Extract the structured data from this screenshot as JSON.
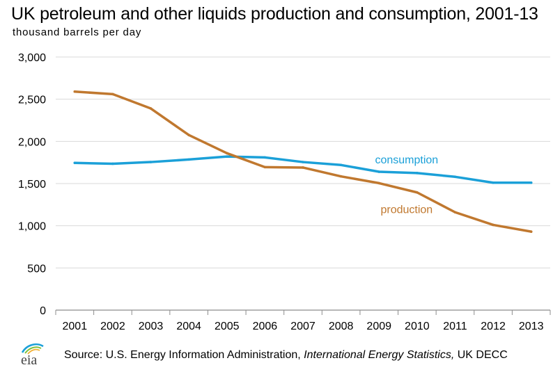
{
  "title": "UK petroleum and other liquids production and consumption, 2001-13",
  "subtitle": "thousand barrels per day",
  "source": {
    "prefix": "Source: U.S. Energy Information  Administration,",
    "italic": "International Energy Statistics,",
    "suffix": "UK DECC"
  },
  "logo_text": "eia",
  "colors": {
    "production": "#c0782f",
    "consumption": "#1ba0d8",
    "grid": "#d9d9d9",
    "axis": "#8c8c8c"
  },
  "chart_data": {
    "type": "line",
    "x": [
      "2001",
      "2002",
      "2003",
      "2004",
      "2005",
      "2006",
      "2007",
      "2008",
      "2009",
      "2010",
      "2011",
      "2012",
      "2013"
    ],
    "ylim": [
      0,
      3000
    ],
    "yticks": [
      0,
      500,
      1000,
      1500,
      2000,
      2500,
      3000
    ],
    "ytick_labels": [
      "0",
      "500",
      "1,000",
      "1,500",
      "2,000",
      "2,500",
      "3,000"
    ],
    "grid": "horizontal",
    "series": [
      {
        "name": "consumption",
        "color": "#1ba0d8",
        "values": [
          1745,
          1735,
          1755,
          1785,
          1820,
          1810,
          1755,
          1720,
          1640,
          1625,
          1580,
          1510,
          1510
        ]
      },
      {
        "name": "production",
        "color": "#c0782f",
        "values": [
          2590,
          2560,
          2390,
          2075,
          1860,
          1695,
          1690,
          1585,
          1505,
          1395,
          1160,
          1010,
          930
        ]
      }
    ]
  }
}
